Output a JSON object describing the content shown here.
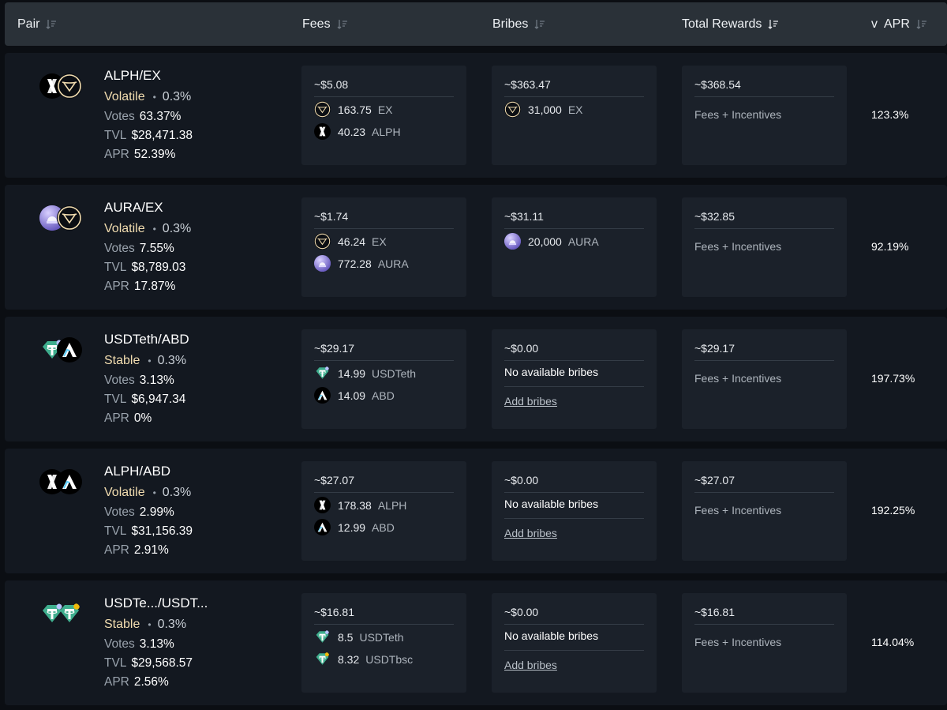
{
  "header": {
    "pair": "Pair",
    "fees": "Fees",
    "bribes": "Bribes",
    "total_rewards": "Total Rewards",
    "apr": "v  APR"
  },
  "colors": {
    "volatile": "#f2ddb0",
    "card_bg": "#1b212a",
    "row_bg": "#131820",
    "header_bg": "#2a3138"
  },
  "rows": [
    {
      "pair": "ALPH/EX",
      "logos": [
        "alph-icon",
        "ex-icon"
      ],
      "type": "Volatile",
      "fee": "0.3%",
      "votes_label": "Votes",
      "votes": "63.37%",
      "tvl_label": "TVL",
      "tvl": "$28,471.38",
      "apr_label": "APR",
      "apr": "52.39%",
      "fees_total": "~$5.08",
      "fees_tokens": [
        {
          "amount": "163.75",
          "symbol": "EX",
          "icon": "ex-icon"
        },
        {
          "amount": "40.23",
          "symbol": "ALPH",
          "icon": "alph-icon"
        }
      ],
      "bribes_total": "~$363.47",
      "bribes_tokens": [
        {
          "amount": "31,000",
          "symbol": "EX",
          "icon": "ex-icon"
        }
      ],
      "rewards_total": "~$368.54",
      "rewards_label": "Fees + Incentives",
      "total_apr": "123.3%"
    },
    {
      "pair": "AURA/EX",
      "logos": [
        "aura-icon",
        "ex-icon"
      ],
      "type": "Volatile",
      "fee": "0.3%",
      "votes_label": "Votes",
      "votes": "7.55%",
      "tvl_label": "TVL",
      "tvl": "$8,789.03",
      "apr_label": "APR",
      "apr": "17.87%",
      "fees_total": "~$1.74",
      "fees_tokens": [
        {
          "amount": "46.24",
          "symbol": "EX",
          "icon": "ex-icon"
        },
        {
          "amount": "772.28",
          "symbol": "AURA",
          "icon": "aura-icon"
        }
      ],
      "bribes_total": "~$31.11",
      "bribes_tokens": [
        {
          "amount": "20,000",
          "symbol": "AURA",
          "icon": "aura-icon"
        }
      ],
      "rewards_total": "~$32.85",
      "rewards_label": "Fees + Incentives",
      "total_apr": "92.19%"
    },
    {
      "pair": "USDTeth/ABD",
      "logos": [
        "usdt-eth-icon",
        "abd-icon"
      ],
      "type": "Stable",
      "fee": "0.3%",
      "votes_label": "Votes",
      "votes": "3.13%",
      "tvl_label": "TVL",
      "tvl": "$6,947.34",
      "apr_label": "APR",
      "apr": "0%",
      "fees_total": "~$29.17",
      "fees_tokens": [
        {
          "amount": "14.99",
          "symbol": "USDTeth",
          "icon": "usdt-eth-icon"
        },
        {
          "amount": "14.09",
          "symbol": "ABD",
          "icon": "abd-icon"
        }
      ],
      "bribes_total": "~$0.00",
      "no_bribes": "No available bribes",
      "add_bribes": "Add bribes",
      "rewards_total": "~$29.17",
      "rewards_label": "Fees + Incentives",
      "total_apr": "197.73%"
    },
    {
      "pair": "ALPH/ABD",
      "logos": [
        "alph-icon",
        "abd-icon"
      ],
      "type": "Volatile",
      "fee": "0.3%",
      "votes_label": "Votes",
      "votes": "2.99%",
      "tvl_label": "TVL",
      "tvl": "$31,156.39",
      "apr_label": "APR",
      "apr": "2.91%",
      "fees_total": "~$27.07",
      "fees_tokens": [
        {
          "amount": "178.38",
          "symbol": "ALPH",
          "icon": "alph-icon"
        },
        {
          "amount": "12.99",
          "symbol": "ABD",
          "icon": "abd-icon"
        }
      ],
      "bribes_total": "~$0.00",
      "no_bribes": "No available bribes",
      "add_bribes": "Add bribes",
      "rewards_total": "~$27.07",
      "rewards_label": "Fees + Incentives",
      "total_apr": "192.25%"
    },
    {
      "pair": "USDTe.../USDT...",
      "logos": [
        "usdt-eth-icon",
        "usdt-bsc-icon"
      ],
      "type": "Stable",
      "fee": "0.3%",
      "votes_label": "Votes",
      "votes": "3.13%",
      "tvl_label": "TVL",
      "tvl": "$29,568.57",
      "apr_label": "APR",
      "apr": "2.56%",
      "fees_total": "~$16.81",
      "fees_tokens": [
        {
          "amount": "8.5",
          "symbol": "USDTeth",
          "icon": "usdt-eth-icon"
        },
        {
          "amount": "8.32",
          "symbol": "USDTbsc",
          "icon": "usdt-bsc-icon"
        }
      ],
      "bribes_total": "~$0.00",
      "no_bribes": "No available bribes",
      "add_bribes": "Add bribes",
      "rewards_total": "~$16.81",
      "rewards_label": "Fees + Incentives",
      "total_apr": "114.04%"
    }
  ]
}
